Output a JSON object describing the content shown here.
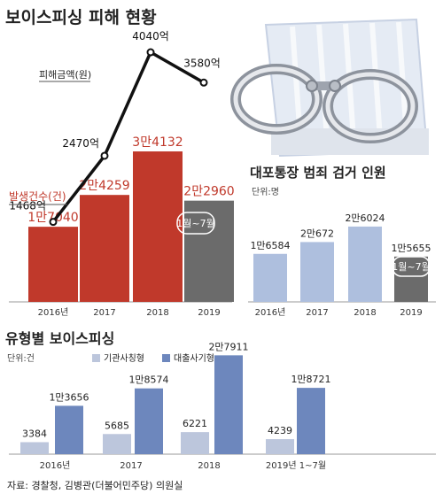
{
  "chart_data": [
    {
      "type": "bar",
      "title": "보이스피싱 피해 현황",
      "categories": [
        "2016년",
        "2017",
        "2018",
        "2019"
      ],
      "series": [
        {
          "name": "발생건수(건)",
          "values": [
            17040,
            24259,
            34132,
            22960
          ],
          "labels": [
            "1만7040",
            "2만4259",
            "3만4132",
            "2만2960"
          ],
          "color": "#c0392b",
          "last_bar_color": "#6b6b6b",
          "last_bar_note": "1월~7월"
        }
      ],
      "line_series": {
        "name": "피해금액(원)",
        "values": [
          1468,
          2470,
          4040,
          3580
        ],
        "labels": [
          "1468억",
          "2470억",
          "4040억",
          "3580억"
        ],
        "color": "#111111"
      }
    },
    {
      "type": "bar",
      "title": "대포통장 범죄 검거 인원",
      "unit_label": "단위:명",
      "categories": [
        "2016년",
        "2017",
        "2018",
        "2019"
      ],
      "series": [
        {
          "values": [
            16584,
            20672,
            26024,
            15655
          ],
          "labels": [
            "1만6584",
            "2만672",
            "2만6024",
            "1만5655"
          ],
          "color": "#aebfde",
          "last_bar_color": "#6b6b6b",
          "last_bar_note": "1월~7월"
        }
      ]
    },
    {
      "type": "bar",
      "title": "유형별 보이스피싱",
      "unit_label": "단위:건",
      "categories": [
        "2016년",
        "2017",
        "2018",
        "2019년 1~7월"
      ],
      "series": [
        {
          "name": "기관사칭형",
          "values": [
            3384,
            5685,
            6221,
            4239
          ],
          "labels": [
            "3384",
            "5685",
            "6221",
            "4239"
          ],
          "color": "#bcc6dc"
        },
        {
          "name": "대출사기형",
          "values": [
            13656,
            18574,
            27911,
            18721
          ],
          "labels": [
            "1만3656",
            "1만8574",
            "2만7911",
            "1만8721"
          ],
          "color": "#6d87bd"
        }
      ]
    }
  ],
  "source": "자료: 경찰청, 김병관(더불어민주당) 의원실",
  "colors": {
    "axis": "#9a9a9a",
    "text": "#222222",
    "red_text": "#c0392b",
    "gray_bar": "#6b6b6b",
    "panel_bg": "#f2f4f8"
  },
  "icons": [
    "handcuffs-icon",
    "bankbook-icon"
  ]
}
